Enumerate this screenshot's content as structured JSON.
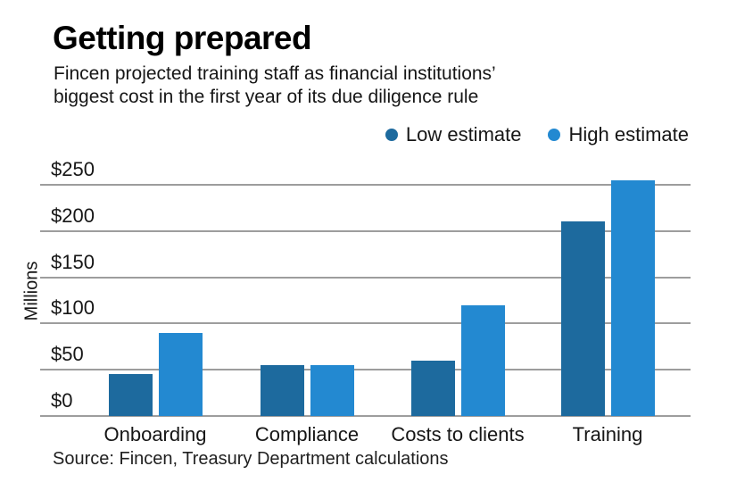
{
  "header": {
    "title": "Getting prepared",
    "subtitle_line1": "Fincen projected training staff as financial institutions’",
    "subtitle_line2": "biggest cost in the first year of its due diligence rule"
  },
  "chart_data": {
    "type": "bar",
    "title": "Getting prepared",
    "subtitle": "Fincen projected training staff as financial institutions’ biggest cost in the first year of its due diligence rule",
    "categories": [
      "Onboarding",
      "Compliance",
      "Costs to clients",
      "Training"
    ],
    "series": [
      {
        "name": "Low estimate",
        "color": "#1d6a9e",
        "values": [
          45,
          55,
          60,
          210
        ]
      },
      {
        "name": "High estimate",
        "color": "#2389d1",
        "values": [
          90,
          55,
          120,
          255
        ]
      }
    ],
    "xlabel": "",
    "ylabel": "Millions",
    "ylim": [
      0,
      250
    ],
    "ytick_step": 50,
    "ytick_labels": [
      "$0",
      "$50",
      "$100",
      "$150",
      "$200",
      "$250"
    ],
    "grid": true,
    "grid_color": "#9d9d9d",
    "legend_position": "top-right",
    "units": "USD millions"
  },
  "source": "Source: Fincen, Treasury Department calculations"
}
